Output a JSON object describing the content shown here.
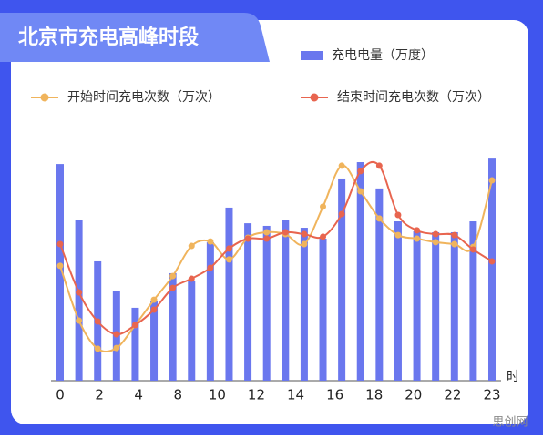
{
  "chart_data": {
    "type": "bar_line",
    "title": "北京市充电高峰时段",
    "x_labels": [
      "0",
      "2",
      "4",
      "8",
      "10",
      "12",
      "14",
      "16",
      "18",
      "20",
      "22",
      "23"
    ],
    "x_unit": "时",
    "ylim": [
      0,
      100
    ],
    "series": [
      {
        "name": "充电电量（万度）",
        "kind": "bar",
        "color": "#6a77ee",
        "values": [
          91.5,
          68,
          50.4,
          38,
          30.8,
          33.8,
          45.4,
          42.3,
          58.5,
          73.1,
          66.5,
          65.4,
          67.7,
          64.6,
          60,
          85.4,
          92.3,
          81.2,
          67.3,
          63.1,
          62.7,
          62.7,
          67.3,
          93.8
        ]
      },
      {
        "name": "开始时间充电次数（万次）",
        "kind": "line",
        "color": "#f0b45c",
        "values": [
          48.5,
          25.4,
          13.5,
          13.8,
          23.5,
          34.2,
          44.2,
          56.9,
          58.8,
          51.2,
          60.4,
          62.7,
          61.9,
          57.7,
          73.5,
          90.8,
          80,
          68.5,
          61.5,
          60,
          58.5,
          57.7,
          56.5,
          84.6
        ]
      },
      {
        "name": "结束时间充电次数（万次）",
        "kind": "line",
        "color": "#e8654f",
        "values": [
          57.7,
          37.3,
          25,
          19.6,
          23.5,
          30,
          39.2,
          43.1,
          47.7,
          55.8,
          60,
          60,
          62.7,
          61.9,
          60.8,
          70.4,
          88.5,
          90.8,
          70,
          63.5,
          61.9,
          61.5,
          55.4,
          50.4
        ]
      }
    ]
  },
  "watermark": "思创网"
}
